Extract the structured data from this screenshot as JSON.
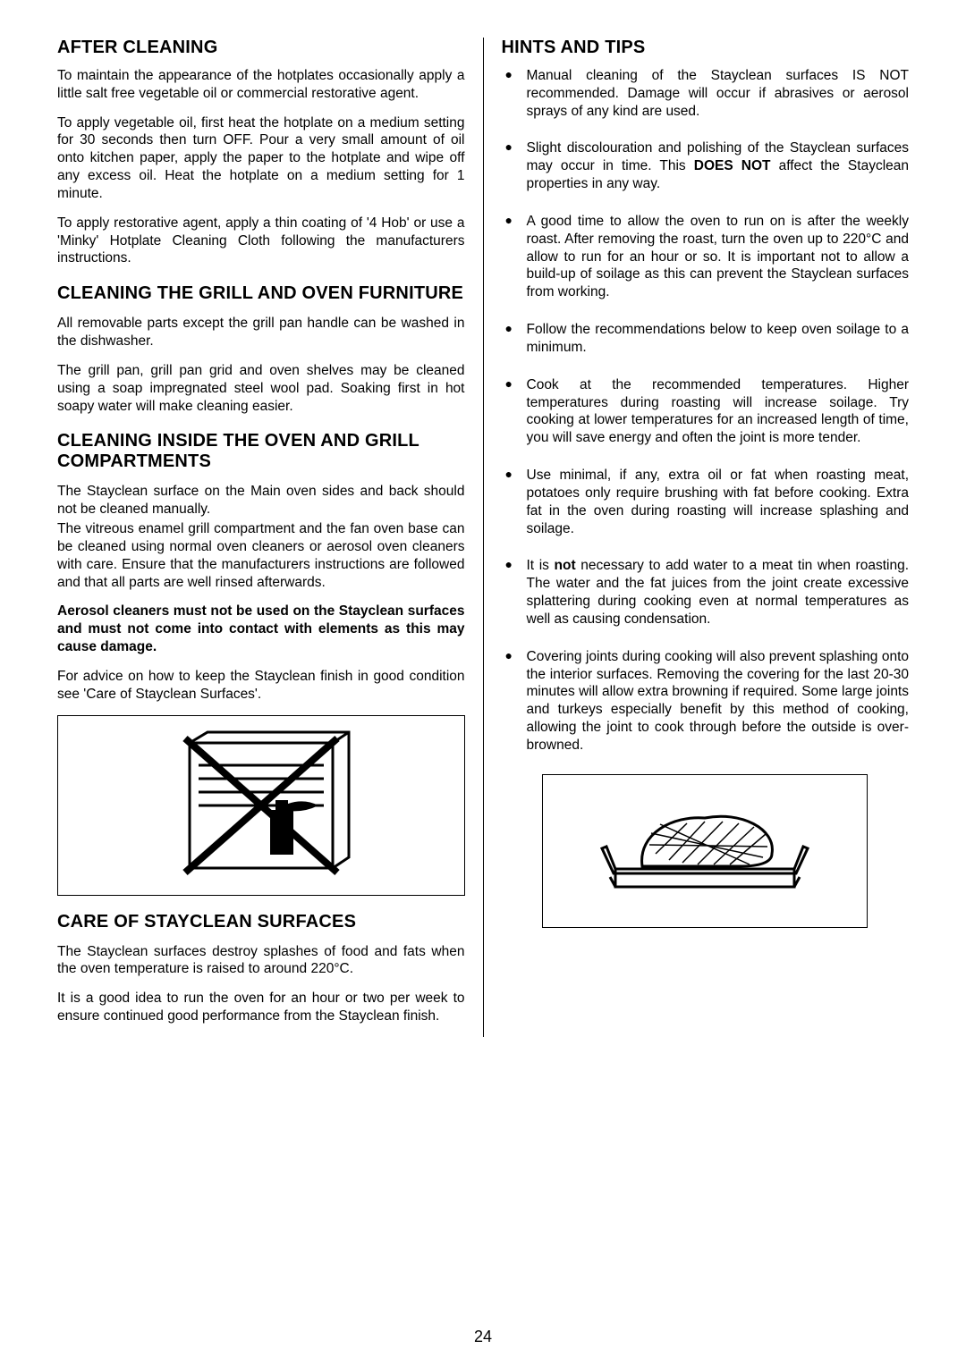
{
  "left": {
    "h_after": "AFTER CLEANING",
    "p_after_1": "To maintain the appearance of the hotplates occasionally apply a little salt free vegetable oil or commercial restorative agent.",
    "p_after_2": "To apply vegetable oil, first heat the hotplate on a medium setting for 30 seconds then turn OFF.  Pour a very small amount of oil onto kitchen paper, apply the paper to the hotplate and wipe off any excess oil.  Heat the hotplate on a medium setting for 1 minute.",
    "p_after_3": "To apply restorative agent, apply a thin coating of '4 Hob' or use a 'Minky' Hotplate Cleaning Cloth following the manufacturers instructions.",
    "h_clean_furn": "CLEANING THE GRILL AND OVEN FURNITURE",
    "p_furn_1": "All removable parts except the grill pan handle can be washed in the dishwasher.",
    "p_furn_2": "The grill pan, grill pan grid and oven shelves may be cleaned using a soap impregnated steel wool pad.  Soaking first in hot soapy water will make cleaning easier.",
    "h_clean_inside": "CLEANING INSIDE THE OVEN AND GRILL COMPARTMENTS",
    "p_inside_1": "The Stayclean surface on the Main oven sides and back should not be cleaned manually.",
    "p_inside_2": "The vitreous enamel grill compartment and the fan oven base can be cleaned using normal oven cleaners or aerosol oven cleaners with care.  Ensure that the manufacturers instructions are followed and that all parts are well rinsed afterwards.",
    "p_inside_3_bold": "Aerosol cleaners must not be used on the Stayclean surfaces and must not come into contact with elements as this may cause damage.",
    "p_inside_4": "For advice on how to keep the Stayclean finish in good condition see 'Care of Stayclean Surfaces'.",
    "h_care": "CARE OF STAYCLEAN SURFACES",
    "p_care_1": "The Stayclean surfaces destroy splashes of food and fats when the oven temperature is raised to around 220°C.",
    "p_care_2": "It is a good idea to run the oven for an hour or two per week to ensure continued good performance from the Stayclean finish."
  },
  "right": {
    "h_hints": "HINTS AND TIPS",
    "bullets": [
      "Manual cleaning of the Stayclean surfaces IS NOT recommended.  Damage will occur if abrasives or aerosol sprays of any kind are used.",
      "Slight discolouration and polishing of the Stayclean surfaces may occur in time. This DOES NOT affect the Stayclean properties in any way.",
      "A good time to allow the oven to run on is after the weekly roast.  After removing the roast, turn the oven up to 220°C and allow to run for an hour or so.  It is important not to allow a build-up of soilage as this can prevent the Stayclean surfaces from working.",
      "Follow the recommendations below to keep oven soilage to a minimum.",
      "Cook at the recommended temperatures.  Higher temperatures during roasting will increase soilage.  Try cooking at lower temperatures for an increased length of time, you will save energy and often the joint is more tender.",
      "Use minimal, if any, extra oil or fat when roasting meat, potatoes only require brushing with fat before cooking.  Extra fat in the oven during roasting will increase splashing and soilage.",
      "It is not necessary to add water to a meat tin when roasting.  The water and the fat juices from the joint create excessive splattering during cooking even at normal temperatures as well as causing condensation.",
      "Covering joints during cooking will also prevent splashing onto the interior surfaces.  Removing the covering for the last 20-30 minutes will allow extra browning if required.  Some large joints and turkeys especially benefit by this method of cooking, allowing the joint to cook through before the outside is over-browned."
    ],
    "bold_map": {
      "1": "DOES NOT",
      "6": "not"
    }
  },
  "page_number": "24",
  "colors": {
    "text": "#000000",
    "bg": "#ffffff",
    "border": "#000000"
  }
}
